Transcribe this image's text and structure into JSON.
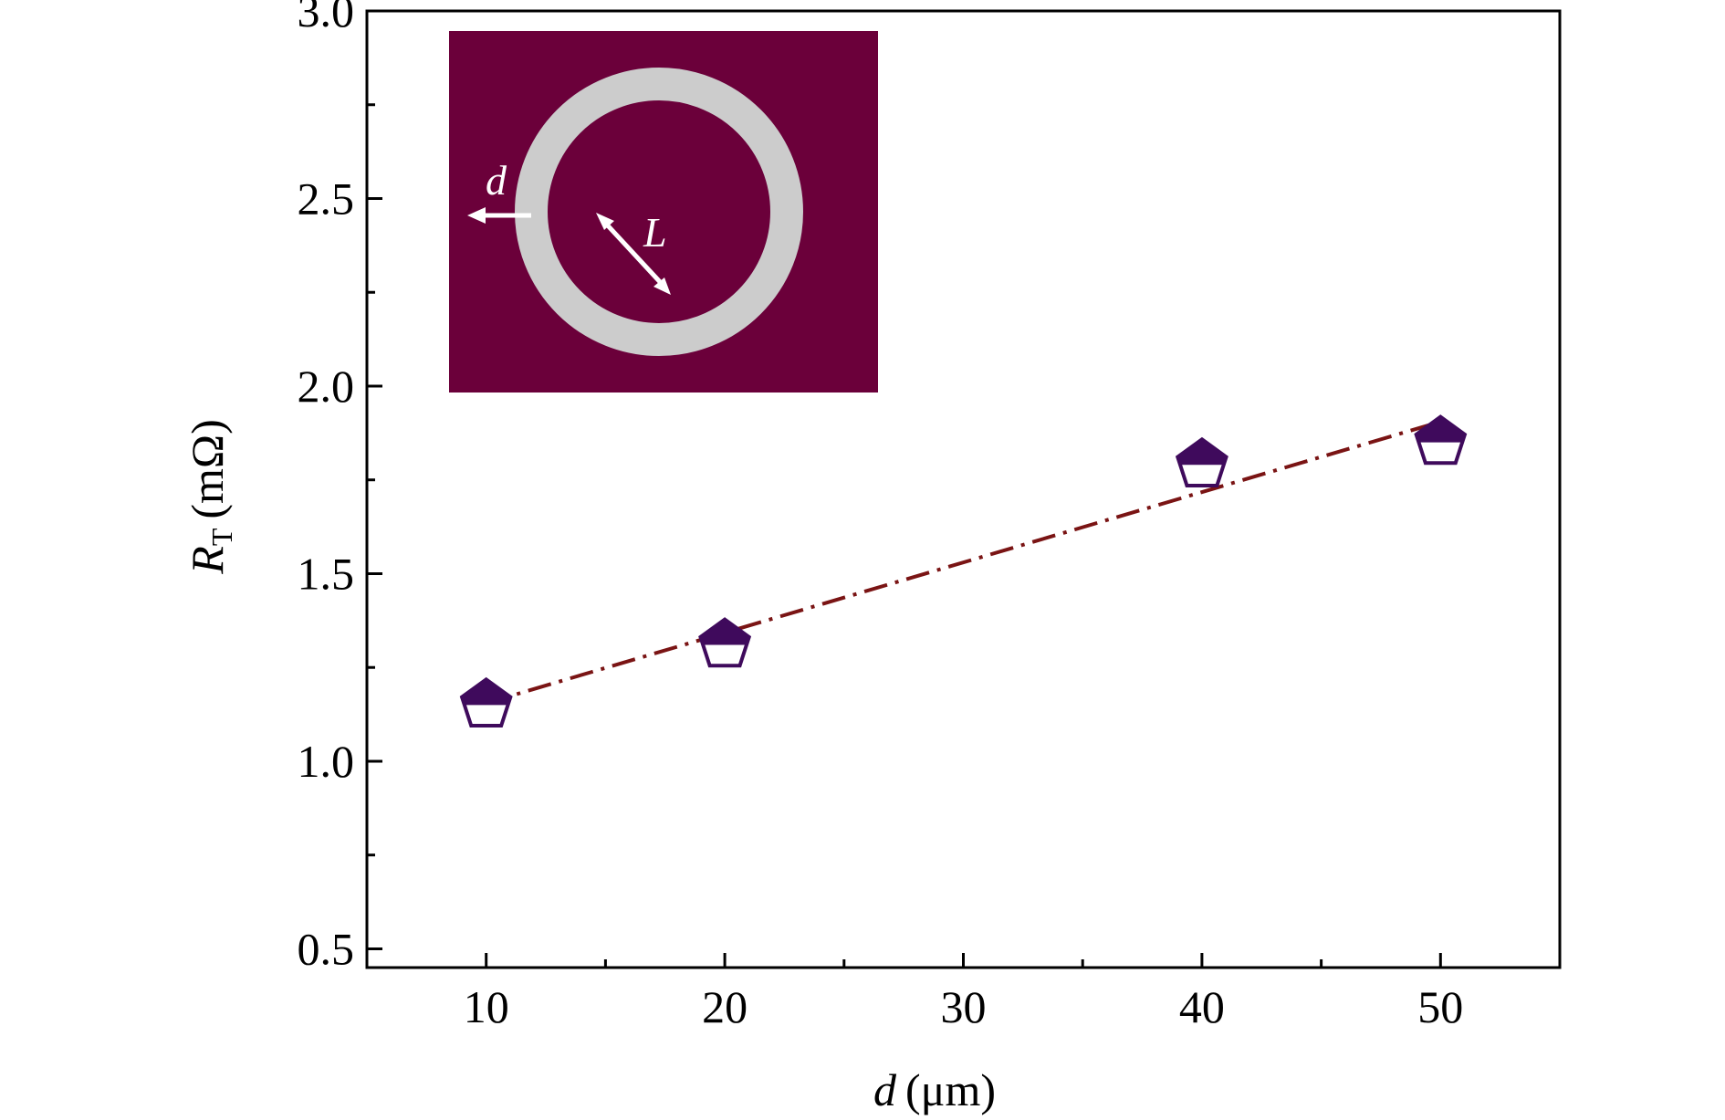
{
  "chart_data": {
    "type": "scatter",
    "xlabel": {
      "var": "d",
      "unit": "(μm)"
    },
    "ylabel": {
      "var": "R",
      "sub": "T",
      "unit": "(mΩ)"
    },
    "xlim": [
      5,
      55
    ],
    "ylim": [
      0.45,
      3.0
    ],
    "xticks": [
      10,
      20,
      30,
      40,
      50
    ],
    "xtick_labels": [
      "10",
      "20",
      "30",
      "40",
      "50"
    ],
    "yticks": [
      0.5,
      1.0,
      1.5,
      2.0,
      2.5,
      3.0
    ],
    "ytick_labels": [
      "0.5",
      "1.0",
      "1.5",
      "2.0",
      "2.5",
      "3.0"
    ],
    "grid": false,
    "series": [
      {
        "marker": "half-filled-pentagon",
        "x": [
          10,
          20,
          40,
          50
        ],
        "y": [
          1.15,
          1.31,
          1.79,
          1.85
        ]
      },
      {
        "style": "dash-dot fit line",
        "x": [
          10,
          50
        ],
        "y": [
          1.155,
          1.905
        ]
      }
    ],
    "inset": {
      "labels": {
        "d": "d",
        "L": "L"
      }
    }
  },
  "colors": {
    "marker": "#3f0a5c",
    "fit_line": "#7a1414",
    "inset_bg": "#6b003a",
    "ring": "#cccccc",
    "axis": "#000000"
  }
}
